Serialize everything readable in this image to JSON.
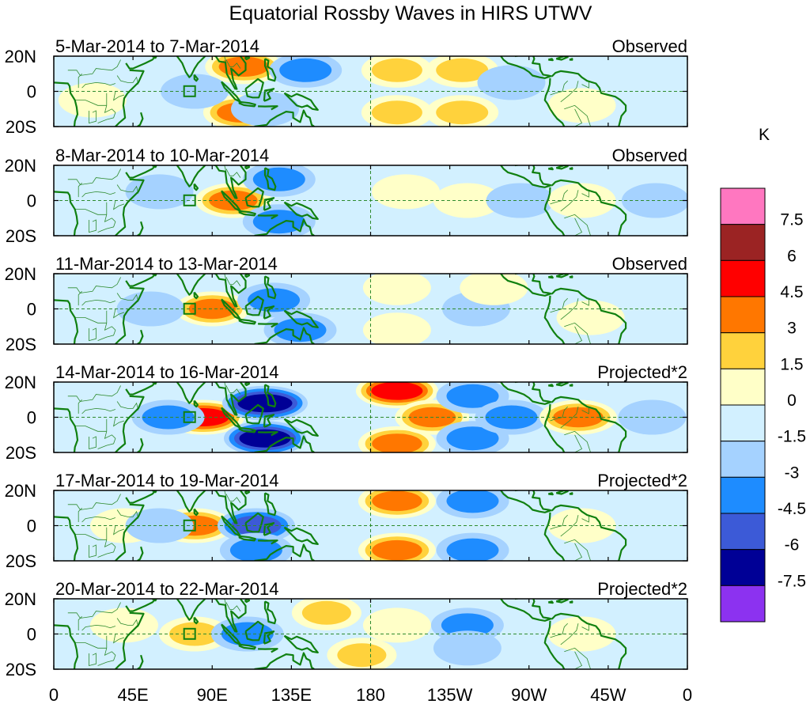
{
  "title": "Equatorial Rossby Waves in HIRS UTWV",
  "units_label": "K",
  "lat_labels": [
    "20N",
    "0",
    "20S"
  ],
  "lon_labels": [
    "0",
    "45E",
    "90E",
    "135E",
    "180",
    "135W",
    "90W",
    "45W",
    "0"
  ],
  "panels": [
    {
      "dates": "5-Mar-2014 to 7-Mar-2014",
      "type": "Observed"
    },
    {
      "dates": "8-Mar-2014 to 10-Mar-2014",
      "type": "Observed"
    },
    {
      "dates": "11-Mar-2014 to 13-Mar-2014",
      "type": "Observed"
    },
    {
      "dates": "14-Mar-2014 to 16-Mar-2014",
      "type": "Projected*2"
    },
    {
      "dates": "17-Mar-2014 to 19-Mar-2014",
      "type": "Projected*2"
    },
    {
      "dates": "20-Mar-2014 to 22-Mar-2014",
      "type": "Projected*2"
    }
  ],
  "colorbar": {
    "colors": [
      "#ff77c0",
      "#9b2323",
      "#ff0000",
      "#ff7700",
      "#ffd23c",
      "#ffffc8",
      "#d2f0ff",
      "#a5d2ff",
      "#1e8cff",
      "#3c5ad7",
      "#000096",
      "#8c32f0"
    ],
    "labels": [
      "7.5",
      "6",
      "4.5",
      "3",
      "1.5",
      "0",
      "-1.5",
      "-3",
      "-4.5",
      "-6",
      "-7.5"
    ]
  },
  "chart_data": {
    "type": "heatmap",
    "title": "Equatorial Rossby Waves in HIRS UTWV",
    "x_axis": {
      "range_deg": [
        0,
        360
      ],
      "ticks": [
        "0",
        "45E",
        "90E",
        "135E",
        "180",
        "135W",
        "90W",
        "45W",
        "0"
      ]
    },
    "y_axis": {
      "range_deg": [
        -20,
        20
      ],
      "ticks": [
        "20N",
        "0",
        "20S"
      ]
    },
    "contour_levels": [
      -7.5,
      -6,
      -4.5,
      -3,
      -1.5,
      0,
      1.5,
      3,
      4.5,
      6,
      7.5
    ],
    "units": "K",
    "features": [
      {
        "panel": 0,
        "anomalies": [
          {
            "lon": 108,
            "lat": 14,
            "value": 4.5
          },
          {
            "lon": 106,
            "lat": -12,
            "value": 3.5
          },
          {
            "lon": 80,
            "lat": 0,
            "value": -1.5
          },
          {
            "lon": 143,
            "lat": 12,
            "value": -3
          },
          {
            "lon": 120,
            "lat": -10,
            "value": -1.5
          },
          {
            "lon": 195,
            "lat": 12,
            "value": 2.5
          },
          {
            "lon": 195,
            "lat": -12,
            "value": 2.5
          },
          {
            "lon": 232,
            "lat": 12,
            "value": 3
          },
          {
            "lon": 232,
            "lat": -12,
            "value": 3
          },
          {
            "lon": 260,
            "lat": 5,
            "value": -1.5
          },
          {
            "lon": 300,
            "lat": -8,
            "value": 1.5
          },
          {
            "lon": 22,
            "lat": -5,
            "value": 1.5
          }
        ]
      },
      {
        "panel": 1,
        "anomalies": [
          {
            "lon": 102,
            "lat": 0,
            "value": 4
          },
          {
            "lon": 128,
            "lat": 12,
            "value": -3
          },
          {
            "lon": 128,
            "lat": -12,
            "value": -3
          },
          {
            "lon": 200,
            "lat": 5,
            "value": 1.5
          },
          {
            "lon": 235,
            "lat": 0,
            "value": 1.5
          },
          {
            "lon": 265,
            "lat": 0,
            "value": -1.5
          },
          {
            "lon": 300,
            "lat": 0,
            "value": 1.5
          },
          {
            "lon": 60,
            "lat": 5,
            "value": -1.5
          },
          {
            "lon": 342,
            "lat": 0,
            "value": -1.5
          }
        ]
      },
      {
        "panel": 2,
        "anomalies": [
          {
            "lon": 90,
            "lat": 0,
            "value": 3.5
          },
          {
            "lon": 125,
            "lat": 5,
            "value": -3
          },
          {
            "lon": 140,
            "lat": -12,
            "value": -3
          },
          {
            "lon": 195,
            "lat": 12,
            "value": 1.5
          },
          {
            "lon": 195,
            "lat": -12,
            "value": 1.5
          },
          {
            "lon": 240,
            "lat": 0,
            "value": -1.5
          },
          {
            "lon": 305,
            "lat": -5,
            "value": 1.5
          },
          {
            "lon": 55,
            "lat": 0,
            "value": -1.5
          },
          {
            "lon": 250,
            "lat": 12,
            "value": 1.5
          }
        ]
      },
      {
        "panel": 3,
        "anomalies": [
          {
            "lon": 85,
            "lat": 0,
            "value": 6
          },
          {
            "lon": 120,
            "lat": 8,
            "value": -7
          },
          {
            "lon": 120,
            "lat": -12,
            "value": -6
          },
          {
            "lon": 65,
            "lat": 0,
            "value": -3
          },
          {
            "lon": 195,
            "lat": 15,
            "value": 6
          },
          {
            "lon": 195,
            "lat": -15,
            "value": 4.5
          },
          {
            "lon": 215,
            "lat": 0,
            "value": 3.5
          },
          {
            "lon": 238,
            "lat": 12,
            "value": -3
          },
          {
            "lon": 238,
            "lat": -12,
            "value": -3
          },
          {
            "lon": 260,
            "lat": 0,
            "value": -3
          },
          {
            "lon": 298,
            "lat": 0,
            "value": 4.5
          },
          {
            "lon": 340,
            "lat": 0,
            "value": -1.5
          }
        ]
      },
      {
        "panel": 4,
        "anomalies": [
          {
            "lon": 80,
            "lat": 0,
            "value": 4.5
          },
          {
            "lon": 115,
            "lat": 0,
            "value": -4.5
          },
          {
            "lon": 115,
            "lat": -14,
            "value": -3
          },
          {
            "lon": 195,
            "lat": 14,
            "value": 4.5
          },
          {
            "lon": 195,
            "lat": -14,
            "value": 4.5
          },
          {
            "lon": 238,
            "lat": 14,
            "value": -3
          },
          {
            "lon": 238,
            "lat": -14,
            "value": -3
          },
          {
            "lon": 300,
            "lat": 0,
            "value": 1.5
          },
          {
            "lon": 40,
            "lat": 0,
            "value": 1.5
          },
          {
            "lon": 60,
            "lat": 0,
            "value": -1.5
          }
        ]
      },
      {
        "panel": 5,
        "anomalies": [
          {
            "lon": 80,
            "lat": 0,
            "value": 2.5
          },
          {
            "lon": 110,
            "lat": 0,
            "value": -3
          },
          {
            "lon": 155,
            "lat": 12,
            "value": 2
          },
          {
            "lon": 175,
            "lat": -12,
            "value": 2
          },
          {
            "lon": 195,
            "lat": 5,
            "value": 1.5
          },
          {
            "lon": 235,
            "lat": 5,
            "value": -3
          },
          {
            "lon": 235,
            "lat": -8,
            "value": -1.5
          },
          {
            "lon": 300,
            "lat": 0,
            "value": 1.5
          },
          {
            "lon": 40,
            "lat": 5,
            "value": 1.5
          }
        ]
      }
    ]
  }
}
